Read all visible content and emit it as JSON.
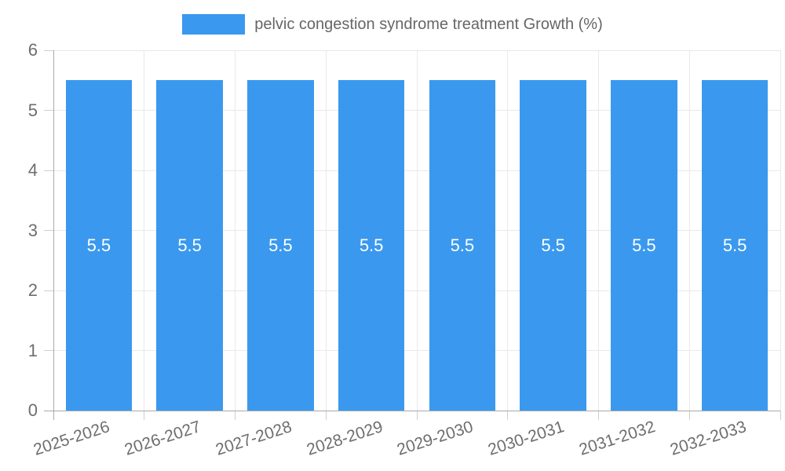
{
  "legend": {
    "label": "pelvic congestion syndrome treatment Growth (%)"
  },
  "chart_data": {
    "type": "bar",
    "title": "pelvic congestion syndrome treatment Growth (%)",
    "categories": [
      "2025-2026",
      "2026-2027",
      "2027-2028",
      "2028-2029",
      "2029-2030",
      "2030-2031",
      "2031-2032",
      "2032-2033"
    ],
    "series": [
      {
        "name": "pelvic congestion syndrome treatment Growth (%)",
        "values": [
          5.5,
          5.5,
          5.5,
          5.5,
          5.5,
          5.5,
          5.5,
          5.5
        ]
      }
    ],
    "bar_value_labels": [
      "5.5",
      "5.5",
      "5.5",
      "5.5",
      "5.5",
      "5.5",
      "5.5",
      "5.5"
    ],
    "xlabel": "",
    "ylabel": "",
    "ylim": [
      0,
      6
    ],
    "yticks": [
      "0",
      "1",
      "2",
      "3",
      "4",
      "5",
      "6"
    ],
    "x_tick_rotation_deg": -18,
    "grid": true,
    "legend_position": "top",
    "colors": {
      "bar": "#3A99EE",
      "bar_label": "#ffffff",
      "grid": "#e9e9e9",
      "tick": "#cfcfcf",
      "axis_line": "#aaaaaa",
      "axis_text": "#6e6e6e",
      "legend_text": "#666666",
      "background": "#ffffff"
    }
  }
}
